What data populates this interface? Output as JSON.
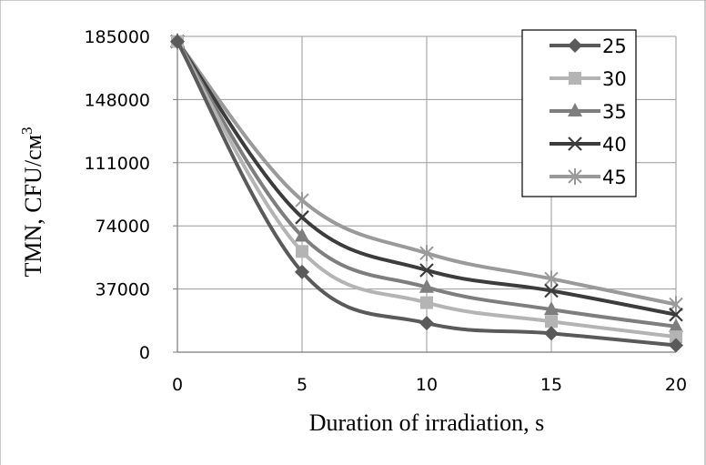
{
  "chart_data": {
    "type": "line",
    "title": "",
    "xlabel": "Duration of irradiation, s",
    "ylabel_main": "TMN, CFU/см",
    "ylabel_sup": "3",
    "x": [
      0,
      5,
      10,
      15,
      20
    ],
    "x_ticks": [
      "0",
      "5",
      "10",
      "15",
      "20"
    ],
    "y_ticks": [
      "0",
      "37000",
      "74000",
      "111000",
      "148000",
      "185000"
    ],
    "ylim": [
      0,
      185000
    ],
    "xlim": [
      0,
      20
    ],
    "grid": true,
    "legend_position": "top-right",
    "series": [
      {
        "name": "25",
        "values": [
          182000,
          47000,
          17000,
          11000,
          4000
        ],
        "color": "#5a5a5a",
        "marker": "diamond"
      },
      {
        "name": "30",
        "values": [
          182000,
          59000,
          29000,
          18000,
          9000
        ],
        "color": "#b4b4b4",
        "marker": "square"
      },
      {
        "name": "35",
        "values": [
          182000,
          68000,
          38000,
          25000,
          15000
        ],
        "color": "#7e7e7e",
        "marker": "triangle"
      },
      {
        "name": "40",
        "values": [
          182000,
          79000,
          48000,
          36000,
          22000
        ],
        "color": "#3c3c3c",
        "marker": "x"
      },
      {
        "name": "45",
        "values": [
          182000,
          89000,
          58000,
          43000,
          28000
        ],
        "color": "#9a9a9a",
        "marker": "star"
      }
    ]
  }
}
